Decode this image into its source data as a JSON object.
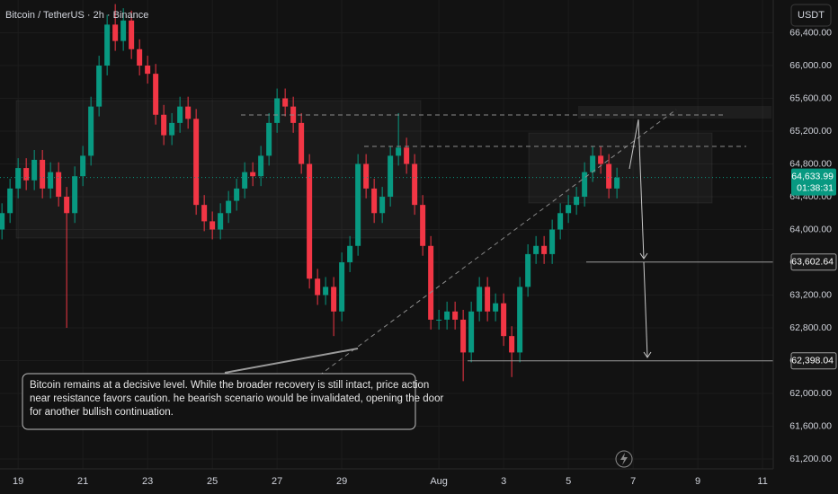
{
  "chart_data": {
    "type": "candlestick",
    "title": "Bitcoin / TetherUS · 2h · Binance",
    "currency": "USDT",
    "x": [
      18.5,
      18.75,
      19,
      19.25,
      19.5,
      19.75,
      20,
      20.25,
      20.5,
      20.75,
      21,
      21.25,
      21.5,
      21.75,
      22,
      22.25,
      22.5,
      22.75,
      23,
      23.25,
      23.5,
      23.75,
      24,
      24.25,
      24.5,
      24.75,
      25,
      25.25,
      25.5,
      25.75,
      26,
      26.25,
      26.5,
      26.75,
      27,
      27.25,
      27.5,
      27.75,
      28,
      28.25,
      28.5,
      28.75,
      29,
      29.25,
      29.5,
      29.75,
      30,
      30.25,
      30.5,
      30.75,
      31,
      31.25,
      31.5,
      31.75,
      32,
      32.25,
      32.5,
      32.75,
      33,
      33.25,
      33.5,
      33.75,
      34,
      34.25,
      34.5,
      34.75,
      35,
      35.25,
      35.5,
      35.75,
      36,
      36.25,
      36.5,
      36.75,
      37,
      37.25,
      37.5
    ],
    "open": [
      64000,
      64200,
      64500,
      64750,
      64600,
      64850,
      64500,
      64700,
      64400,
      64200,
      64650,
      64900,
      65500,
      66000,
      66500,
      66300,
      66550,
      66200,
      66000,
      65900,
      65400,
      65150,
      65300,
      65500,
      65350,
      64300,
      64100,
      64000,
      64200,
      64350,
      64500,
      64700,
      64650,
      64900,
      65300,
      65600,
      65500,
      65300,
      64800,
      63400,
      63200,
      63300,
      63000,
      63600,
      63800,
      64800,
      64500,
      64200,
      64400,
      64900,
      65000,
      64800,
      64300,
      63800,
      62900,
      62900,
      63000,
      62900,
      62500,
      63000,
      63300,
      63000,
      63100,
      62700,
      62500,
      63300,
      63700,
      63800,
      63700,
      64000,
      64200,
      64300,
      64400,
      64700,
      64900,
      64800,
      64500
    ],
    "high": [
      64320,
      64620,
      64870,
      64870,
      64970,
      64970,
      64820,
      64820,
      64520,
      64770,
      65020,
      65620,
      66120,
      66620,
      66750,
      66700,
      66670,
      66320,
      66120,
      66020,
      65520,
      65420,
      65620,
      65620,
      65470,
      64420,
      64220,
      64320,
      64470,
      64620,
      64820,
      64820,
      65020,
      65420,
      65720,
      65720,
      65620,
      65420,
      64920,
      63520,
      63420,
      63420,
      63720,
      63920,
      64920,
      64920,
      64620,
      64520,
      65020,
      65420,
      65120,
      64920,
      64420,
      63920,
      63020,
      63120,
      63120,
      63020,
      63120,
      63420,
      63420,
      63220,
      63220,
      62820,
      63420,
      63820,
      63920,
      63920,
      64120,
      64320,
      64420,
      64520,
      64820,
      65020,
      65020,
      64920,
      64754
    ],
    "low": [
      63880,
      64080,
      64380,
      64480,
      64480,
      64380,
      64380,
      64280,
      62800,
      64080,
      64530,
      64780,
      65380,
      65880,
      66180,
      66180,
      66080,
      65880,
      65780,
      65280,
      65030,
      65030,
      65180,
      65230,
      64180,
      63980,
      63880,
      63880,
      64080,
      64230,
      64380,
      64530,
      64530,
      64780,
      65180,
      65380,
      65180,
      64680,
      63280,
      63080,
      63080,
      62700,
      62880,
      63480,
      63680,
      64380,
      64080,
      64080,
      64280,
      64780,
      64680,
      64180,
      63680,
      62780,
      62780,
      62780,
      62780,
      62150,
      62380,
      62880,
      62880,
      62880,
      62580,
      62200,
      62380,
      63180,
      63580,
      63580,
      63580,
      63880,
      64080,
      64180,
      64280,
      64580,
      64680,
      64380,
      64380
    ],
    "close": [
      64200,
      64500,
      64750,
      64600,
      64850,
      64500,
      64700,
      64400,
      64200,
      64650,
      64900,
      65500,
      66000,
      66500,
      66300,
      66550,
      66200,
      66000,
      65900,
      65400,
      65150,
      65300,
      65500,
      65350,
      64300,
      64100,
      64000,
      64200,
      64350,
      64500,
      64700,
      64650,
      64900,
      65300,
      65600,
      65500,
      65300,
      64800,
      63400,
      63200,
      63300,
      63000,
      63600,
      63800,
      64800,
      64500,
      64200,
      64400,
      64900,
      65000,
      64800,
      64300,
      63800,
      62900,
      62900,
      63000,
      62900,
      62500,
      63000,
      63300,
      63000,
      63100,
      62700,
      62500,
      63300,
      63700,
      63800,
      63700,
      64000,
      64200,
      64300,
      64400,
      64700,
      64900,
      64800,
      64500,
      64634
    ],
    "up_color": "#089981",
    "down_color": "#f23645",
    "xlim": [
      18.44,
      42.33
    ],
    "ylim": [
      61080,
      66800
    ],
    "xticks": [
      19,
      21,
      23,
      25,
      27,
      29,
      {
        "value": 32,
        "label": "Aug"
      },
      {
        "value": 34,
        "label": "3"
      },
      {
        "value": 36,
        "label": "5"
      },
      {
        "value": 38,
        "label": "7"
      },
      {
        "value": 40,
        "label": "9"
      },
      {
        "value": 42,
        "label": "11"
      }
    ],
    "yticks": [
      {
        "value": 61200,
        "label": "61,200.00"
      },
      {
        "value": 61600,
        "label": "61,600.00"
      },
      {
        "value": 62000,
        "label": "62,000.00"
      },
      {
        "value": 62400,
        "label": "62,400.00"
      },
      {
        "value": 62800,
        "label": "62,800.00"
      },
      {
        "value": 63200,
        "label": "63,200.00"
      },
      {
        "value": 63600,
        "label": "63,600.00"
      },
      {
        "value": 64000,
        "label": "64,000.00"
      },
      {
        "value": 64400,
        "label": "64,400.00"
      },
      {
        "value": 64800,
        "label": "64,800.00"
      },
      {
        "value": 65200,
        "label": "65,200.00"
      },
      {
        "value": 65600,
        "label": "65,600.00"
      },
      {
        "value": 66000,
        "label": "66,000.00"
      },
      {
        "value": 66400,
        "label": "66,400.00"
      }
    ],
    "grid": true,
    "last_price": {
      "value": 64633.99,
      "label": "64,633.99",
      "countdown": "01:38:31"
    },
    "levels": [
      {
        "value": 63602.64,
        "label": "63,602.64"
      },
      {
        "value": 62398.04,
        "label": "62,398.04"
      }
    ],
    "annotation": [
      "Bitcoin remains at a decisive level. While the broader recovery is still intact, price action",
      "near resistance favors caution. he bearish scenario would be invalidated, opening the door",
      " for another bullish continuation."
    ]
  }
}
